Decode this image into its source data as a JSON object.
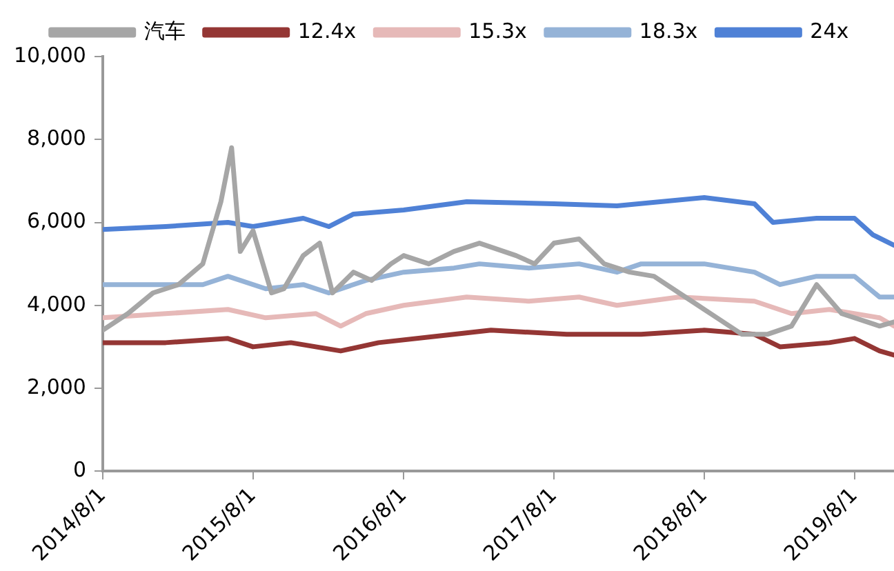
{
  "chart_data": {
    "type": "line",
    "legend": "top",
    "grid": false,
    "marker": "none",
    "line_style": "solid",
    "xlim": [
      "2014-08-01",
      "2019-11-05"
    ],
    "xticks": [
      {
        "value": "2014-08-01",
        "label": "2014/8/1"
      },
      {
        "value": "2015-08-01",
        "label": "2015/8/1"
      },
      {
        "value": "2016-08-01",
        "label": "2016/8/1"
      },
      {
        "value": "2017-08-01",
        "label": "2017/8/1"
      },
      {
        "value": "2018-08-01",
        "label": "2018/8/1"
      },
      {
        "value": "2019-08-01",
        "label": "2019/8/1"
      }
    ],
    "ylim": [
      0,
      10000
    ],
    "yticks": [
      {
        "value": 0,
        "label": "0"
      },
      {
        "value": 2000,
        "label": "2,000"
      },
      {
        "value": 4000,
        "label": "4,000"
      },
      {
        "value": 6000,
        "label": "6,000"
      },
      {
        "value": 8000,
        "label": "8,000"
      },
      {
        "value": 10000,
        "label": "10,000"
      }
    ],
    "series": [
      {
        "name": "汽车",
        "color": "#a6a6a6",
        "x": [
          "2014-08-01",
          "2014-10-01",
          "2014-12-01",
          "2015-02-01",
          "2015-04-01",
          "2015-05-15",
          "2015-06-10",
          "2015-07-01",
          "2015-08-01",
          "2015-09-15",
          "2015-10-15",
          "2015-12-01",
          "2016-01-10",
          "2016-02-10",
          "2016-04-01",
          "2016-05-15",
          "2016-07-01",
          "2016-08-01",
          "2016-10-01",
          "2016-12-01",
          "2017-02-01",
          "2017-05-01",
          "2017-06-15",
          "2017-08-01",
          "2017-10-01",
          "2017-12-01",
          "2018-02-01",
          "2018-04-01",
          "2018-06-01",
          "2018-09-01",
          "2018-11-01",
          "2019-01-01",
          "2019-03-01",
          "2019-05-01",
          "2019-07-01",
          "2019-09-01",
          "2019-10-01",
          "2019-11-05"
        ],
        "values": [
          3400,
          3800,
          4300,
          4500,
          5000,
          6500,
          7800,
          5300,
          5800,
          4300,
          4400,
          5200,
          5500,
          4300,
          4800,
          4600,
          5000,
          5200,
          5000,
          5300,
          5500,
          5200,
          5000,
          5500,
          5600,
          5000,
          4800,
          4700,
          4300,
          3700,
          3300,
          3300,
          3500,
          4500,
          3800,
          3600,
          3500,
          3600
        ]
      },
      {
        "name": "12.4x",
        "color": "#943634",
        "x": [
          "2014-08-01",
          "2015-01-01",
          "2015-06-01",
          "2015-08-01",
          "2015-11-01",
          "2016-03-01",
          "2016-06-01",
          "2016-12-01",
          "2017-03-01",
          "2017-09-01",
          "2018-03-01",
          "2018-08-01",
          "2018-12-01",
          "2019-02-01",
          "2019-06-01",
          "2019-08-01",
          "2019-10-01",
          "2019-11-05"
        ],
        "values": [
          3100,
          3100,
          3200,
          3000,
          3100,
          2900,
          3100,
          3300,
          3400,
          3300,
          3300,
          3400,
          3300,
          3000,
          3100,
          3200,
          2900,
          2800
        ]
      },
      {
        "name": "15.3x",
        "color": "#e6b9b8",
        "x": [
          "2014-08-01",
          "2015-01-01",
          "2015-06-01",
          "2015-09-01",
          "2016-01-01",
          "2016-03-01",
          "2016-05-01",
          "2016-08-01",
          "2017-01-01",
          "2017-06-01",
          "2017-10-01",
          "2018-01-01",
          "2018-06-01",
          "2018-12-01",
          "2019-03-01",
          "2019-06-01",
          "2019-10-01",
          "2019-11-05"
        ],
        "values": [
          3700,
          3800,
          3900,
          3700,
          3800,
          3500,
          3800,
          4000,
          4200,
          4100,
          4200,
          4000,
          4200,
          4100,
          3800,
          3900,
          3700,
          3500
        ]
      },
      {
        "name": "18.3x",
        "color": "#95b3d7",
        "x": [
          "2014-08-01",
          "2015-04-01",
          "2015-06-01",
          "2015-09-01",
          "2015-12-01",
          "2016-02-01",
          "2016-05-01",
          "2016-08-01",
          "2016-12-01",
          "2017-02-01",
          "2017-06-01",
          "2017-10-01",
          "2018-01-01",
          "2018-03-01",
          "2018-08-01",
          "2018-12-01",
          "2019-02-01",
          "2019-05-01",
          "2019-08-01",
          "2019-10-01",
          "2019-11-05"
        ],
        "values": [
          4500,
          4500,
          4700,
          4400,
          4500,
          4300,
          4600,
          4800,
          4900,
          5000,
          4900,
          5000,
          4800,
          5000,
          5000,
          4800,
          4500,
          4700,
          4700,
          4200,
          4200
        ]
      },
      {
        "name": "24x",
        "color": "#4f81d6",
        "x": [
          "2014-08-01",
          "2015-01-01",
          "2015-06-01",
          "2015-08-01",
          "2015-12-01",
          "2016-02-01",
          "2016-04-01",
          "2016-08-01",
          "2017-01-01",
          "2017-08-01",
          "2018-01-01",
          "2018-08-01",
          "2018-12-01",
          "2019-01-15",
          "2019-05-01",
          "2019-08-01",
          "2019-09-15",
          "2019-11-05"
        ],
        "values": [
          5830,
          5900,
          6000,
          5900,
          6100,
          5900,
          6200,
          6300,
          6500,
          6450,
          6400,
          6600,
          6450,
          6000,
          6100,
          6100,
          5700,
          5450
        ]
      }
    ]
  }
}
